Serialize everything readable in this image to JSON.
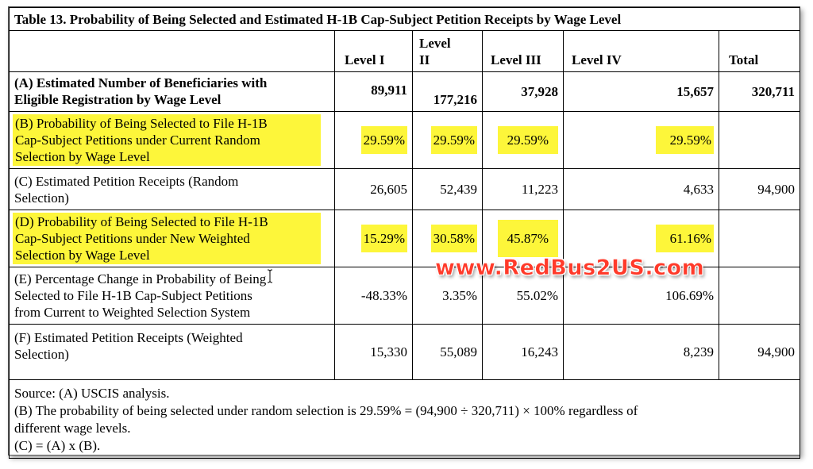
{
  "table": {
    "title": "Table 13. Probability of Being Selected and Estimated H-1B Cap-Subject Petition Receipts by Wage Level",
    "headers": [
      "Level I",
      "Level II",
      "Level III",
      "Level IV",
      "Total"
    ],
    "header_level_ii_line1": "Level",
    "header_level_ii_line2": "II",
    "rows": [
      {
        "label_line1": "(A) Estimated Number of Beneficiaries with",
        "label_line2": "Eligible Registration by Wage Level",
        "values": [
          "89,911",
          "177,216",
          "37,928",
          "15,657",
          "320,711"
        ]
      },
      {
        "label_line1": "(B) Probability of Being Selected to File H-1B",
        "label_line2": "Cap-Subject Petitions under Current Random",
        "label_line3": "Selection by Wage Level",
        "values": [
          "29.59%",
          "29.59%",
          "29.59%",
          "29.59%",
          ""
        ]
      },
      {
        "label_line1": "(C) Estimated Petition Receipts (Random",
        "label_line2": "Selection)",
        "values": [
          "26,605",
          "52,439",
          "11,223",
          "4,633",
          "94,900"
        ]
      },
      {
        "label_line1": "(D) Probability of Being Selected to File H-1B",
        "label_line2": "Cap-Subject Petitions under New Weighted",
        "label_line3": "Selection by Wage Level",
        "values": [
          "15.29%",
          "30.58%",
          "45.87%",
          "61.16%",
          ""
        ]
      },
      {
        "label_line1": "(E) Percentage Change in Probability of Being",
        "label_line2": "Selected to File H-1B Cap-Subject Petitions",
        "label_line3": "from Current to Weighted Selection System",
        "values": [
          "-48.33%",
          "3.35%",
          "55.02%",
          "106.69%",
          ""
        ]
      },
      {
        "label_line1": "(F) Estimated Petition Receipts (Weighted",
        "label_line2": "Selection)",
        "values": [
          "15,330",
          "55,089",
          "16,243",
          "8,239",
          "94,900"
        ]
      }
    ],
    "source": {
      "line1": "Source: (A) USCIS analysis.",
      "line2": "(B) The probability of being selected under random selection is 29.59% = (94,900 ÷ 320,711) × 100% regardless of",
      "line3": "different wage levels.",
      "line4": "(C) = (A) x (B)."
    }
  },
  "watermark": {
    "text": "www.RedBus2US.com",
    "color": "#ff3a2a"
  },
  "colors": {
    "highlight": "#fdf63a",
    "border": "#000000"
  },
  "icons": {
    "cursor": "text-cursor-icon"
  }
}
